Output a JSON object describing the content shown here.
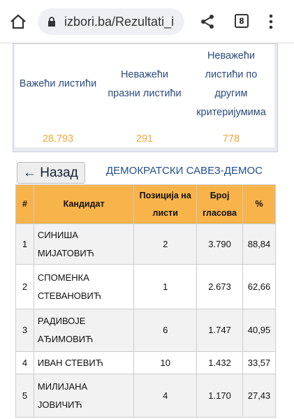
{
  "browser": {
    "url": "izbori.ba/Rezultati_i",
    "tabs": "8"
  },
  "summary": {
    "columns": [
      {
        "label": "Важећи листићи",
        "value": "28.793"
      },
      {
        "label": "Неважећи празни листићи",
        "value": "291"
      },
      {
        "label": "Неважећи листићи по другим критеријумима",
        "value": "778"
      }
    ]
  },
  "back_button": "Назад",
  "party": "ДЕМОКРАТСКИ САВЕЗ-ДЕМОС",
  "table": {
    "headers": [
      "#",
      "Кандидат",
      "Позиција на листи",
      "Број гласова",
      "%"
    ],
    "rows": [
      [
        1,
        "СИНИША МИЈАТОВИЋ",
        2,
        "3.790",
        "88,84"
      ],
      [
        2,
        "СПОМЕНКА СТЕВАНОВИЋ",
        1,
        "2.673",
        "62,66"
      ],
      [
        3,
        "РАДИВОЈЕ АЂИМОВИЋ",
        6,
        "1.747",
        "40,95"
      ],
      [
        4,
        "ИВАН СТЕВИЋ",
        10,
        "1.432",
        "33,57"
      ],
      [
        5,
        "МИЛИЈАНА ЈОВИЧИЋ",
        4,
        "1.170",
        "27,43"
      ]
    ]
  }
}
